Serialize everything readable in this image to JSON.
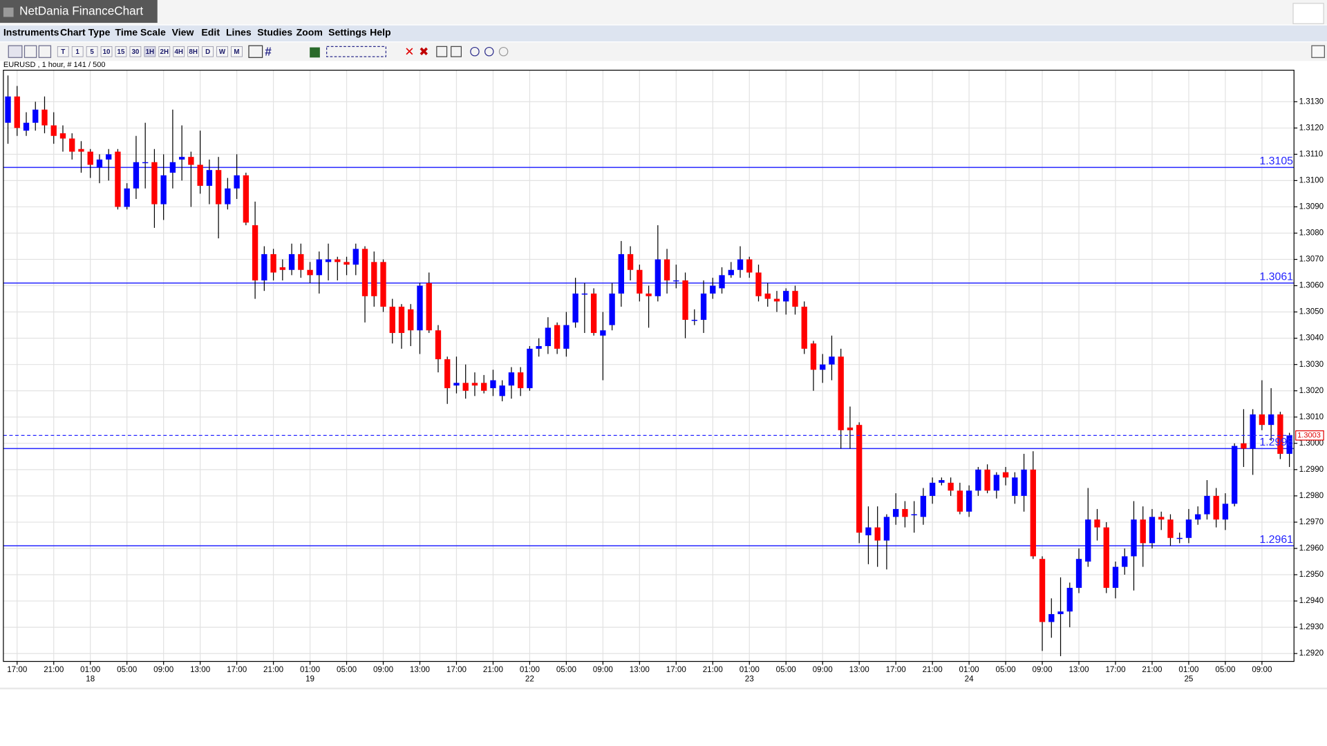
{
  "window": {
    "title": "NetDania FinanceChart"
  },
  "menu": [
    "Instruments",
    "Chart Type",
    "Time Scale",
    "View",
    "Edit",
    "Lines",
    "Studies",
    "Zoom",
    "Settings",
    "Help"
  ],
  "toolbar": [
    "T",
    "1",
    "5",
    "10",
    "15",
    "30",
    "1H",
    "2H",
    "4H",
    "8H",
    "D",
    "W",
    "M"
  ],
  "chart_data": {
    "type": "candlestick",
    "header": "EURUSD , 1 hour, # 141 / 500",
    "up_color": "#0000ff",
    "down_color": "#ff0000",
    "open": [
      1.3122,
      1.3132,
      1.3119,
      1.3122,
      1.3127,
      1.3121,
      1.3118,
      1.3116,
      1.3112,
      1.3111,
      1.3105,
      1.3108,
      1.3111,
      1.309,
      1.3097,
      1.3107,
      1.3107,
      1.3091,
      1.3103,
      1.3108,
      1.3109,
      1.3106,
      1.3098,
      1.3104,
      1.3091,
      1.3097,
      1.3102,
      1.3083,
      1.3062,
      1.3072,
      1.3067,
      1.3066,
      1.3072,
      1.3066,
      1.3064,
      1.3069,
      1.307,
      1.3069,
      1.3068,
      1.3074,
      1.3069,
      1.3069,
      1.3052,
      1.3052,
      1.3051,
      1.3043,
      1.3061,
      1.3043,
      1.3032,
      1.3022,
      1.3023,
      1.3023,
      1.3023,
      1.3021,
      1.3018,
      1.3022,
      1.3027,
      1.3021,
      1.3036,
      1.3037,
      1.3045,
      1.3036,
      1.3046,
      1.3057,
      1.3057,
      1.3041,
      1.3045,
      1.3057,
      1.3072,
      1.3066,
      1.3057,
      1.3056,
      1.307,
      1.3062,
      1.3062,
      1.3047,
      1.3047,
      1.3057,
      1.3059,
      1.3064,
      1.3066,
      1.307,
      1.3065,
      1.3057,
      1.3055,
      1.3054,
      1.3058,
      1.3052,
      1.3038,
      1.3028,
      1.303,
      1.3033,
      1.3006,
      1.3007,
      1.2965,
      1.2968,
      1.2963,
      1.2972,
      1.2975,
      1.2973,
      1.2972,
      1.298,
      1.2985,
      1.2985,
      1.2982,
      1.2974,
      1.2982,
      1.299,
      1.2982,
      1.2989,
      1.298,
      1.298,
      1.299,
      1.2956,
      1.2932,
      1.2935,
      1.2936,
      1.2945,
      1.2955,
      1.2971,
      1.2968,
      1.2945,
      1.2953,
      1.2957,
      1.2971,
      1.2962,
      1.2972,
      1.2971,
      1.2964,
      1.2964,
      1.2971,
      1.2973,
      1.298,
      1.2971,
      1.2977,
      1.3,
      1.2998,
      1.3011,
      1.3007,
      1.3011,
      1.2996
    ],
    "high": [
      1.314,
      1.3136,
      1.3126,
      1.313,
      1.3132,
      1.3126,
      1.3121,
      1.3118,
      1.3115,
      1.3112,
      1.311,
      1.3112,
      1.3112,
      1.3099,
      1.3117,
      1.3122,
      1.3112,
      1.311,
      1.3127,
      1.3121,
      1.3111,
      1.3119,
      1.3108,
      1.3109,
      1.3101,
      1.311,
      1.3103,
      1.3092,
      1.3075,
      1.3074,
      1.307,
      1.3076,
      1.3076,
      1.3069,
      1.3073,
      1.3076,
      1.3071,
      1.3071,
      1.3076,
      1.3075,
      1.3073,
      1.307,
      1.3055,
      1.3053,
      1.3053,
      1.3061,
      1.3065,
      1.3045,
      1.3033,
      1.3033,
      1.303,
      1.3027,
      1.3026,
      1.3028,
      1.3024,
      1.3029,
      1.3029,
      1.3037,
      1.304,
      1.3048,
      1.3046,
      1.305,
      1.3063,
      1.3061,
      1.3059,
      1.305,
      1.3061,
      1.3077,
      1.3075,
      1.3068,
      1.306,
      1.3083,
      1.3074,
      1.3068,
      1.3065,
      1.3051,
      1.3062,
      1.3063,
      1.3067,
      1.3069,
      1.3075,
      1.3071,
      1.3068,
      1.3061,
      1.3058,
      1.3059,
      1.306,
      1.3054,
      1.3039,
      1.3034,
      1.3041,
      1.3036,
      1.3014,
      1.3008,
      1.2976,
      1.2976,
      1.2973,
      1.2981,
      1.2978,
      1.2978,
      1.2983,
      1.2987,
      1.2987,
      1.2987,
      1.2985,
      1.2984,
      1.2991,
      1.2992,
      1.2989,
      1.2991,
      1.2989,
      1.2996,
      1.2997,
      1.2957,
      1.2941,
      1.2949,
      1.2947,
      1.296,
      1.2983,
      1.2975,
      1.297,
      1.2955,
      1.296,
      1.2978,
      1.2976,
      1.2975,
      1.2974,
      1.2973,
      1.2966,
      1.2975,
      1.2976,
      1.2986,
      1.2983,
      1.2981,
      1.3,
      1.3013,
      1.3013,
      1.3024,
      1.3021,
      1.3012,
      1.3004
    ],
    "low": [
      1.3114,
      1.3117,
      1.3117,
      1.3119,
      1.3118,
      1.3114,
      1.3111,
      1.3108,
      1.3103,
      1.3101,
      1.3099,
      1.31,
      1.3089,
      1.3089,
      1.3093,
      1.3097,
      1.3082,
      1.3085,
      1.3097,
      1.31,
      1.309,
      1.3095,
      1.3091,
      1.3078,
      1.3089,
      1.3093,
      1.3083,
      1.3055,
      1.3058,
      1.3062,
      1.3062,
      1.3064,
      1.3063,
      1.3061,
      1.3057,
      1.3062,
      1.3062,
      1.3064,
      1.3064,
      1.3046,
      1.3052,
      1.305,
      1.3038,
      1.3036,
      1.3037,
      1.3034,
      1.3042,
      1.3027,
      1.3015,
      1.3019,
      1.3017,
      1.3018,
      1.3019,
      1.3018,
      1.3016,
      1.3017,
      1.3018,
      1.302,
      1.3033,
      1.3034,
      1.3034,
      1.3033,
      1.3044,
      1.3042,
      1.3041,
      1.3024,
      1.3043,
      1.3052,
      1.3062,
      1.3054,
      1.3044,
      1.3054,
      1.3057,
      1.3059,
      1.304,
      1.3045,
      1.3042,
      1.3055,
      1.3057,
      1.3063,
      1.3063,
      1.3063,
      1.3054,
      1.3052,
      1.305,
      1.3049,
      1.3049,
      1.3034,
      1.302,
      1.3023,
      1.3024,
      1.2998,
      1.2998,
      1.2962,
      1.2954,
      1.2953,
      1.2952,
      1.2969,
      1.2968,
      1.2966,
      1.2969,
      1.2977,
      1.2984,
      1.298,
      1.2973,
      1.2972,
      1.298,
      1.2981,
      1.2979,
      1.2984,
      1.2977,
      1.2974,
      1.2956,
      1.2921,
      1.2926,
      1.2919,
      1.293,
      1.2943,
      1.2953,
      1.2963,
      1.2943,
      1.2941,
      1.295,
      1.2944,
      1.2953,
      1.296,
      1.2967,
      1.2961,
      1.2962,
      1.2962,
      1.2969,
      1.2971,
      1.2968,
      1.2967,
      1.2976,
      1.2991,
      1.2988,
      1.3005,
      1.3001,
      1.2994,
      1.2991
    ],
    "close": [
      1.3132,
      1.312,
      1.3122,
      1.3127,
      1.3121,
      1.3117,
      1.3116,
      1.3111,
      1.3111,
      1.3106,
      1.3108,
      1.311,
      1.309,
      1.3097,
      1.3107,
      1.3107,
      1.3091,
      1.3102,
      1.3107,
      1.3109,
      1.3106,
      1.3098,
      1.3104,
      1.3091,
      1.3097,
      1.3102,
      1.3084,
      1.3062,
      1.3072,
      1.3065,
      1.3066,
      1.3072,
      1.3066,
      1.3064,
      1.307,
      1.307,
      1.3069,
      1.3068,
      1.3074,
      1.3056,
      1.3056,
      1.3052,
      1.3042,
      1.3042,
      1.3043,
      1.306,
      1.3043,
      1.3032,
      1.3021,
      1.3023,
      1.302,
      1.3022,
      1.302,
      1.3024,
      1.3022,
      1.3027,
      1.3021,
      1.3036,
      1.3037,
      1.3044,
      1.3036,
      1.3045,
      1.3057,
      1.3057,
      1.3042,
      1.3043,
      1.3057,
      1.3072,
      1.3066,
      1.3057,
      1.3056,
      1.307,
      1.3062,
      1.3062,
      1.3047,
      1.3047,
      1.3057,
      1.306,
      1.3064,
      1.3066,
      1.307,
      1.3065,
      1.3056,
      1.3055,
      1.3054,
      1.3058,
      1.3052,
      1.3036,
      1.3028,
      1.303,
      1.3033,
      1.3005,
      1.3005,
      1.2966,
      1.2968,
      1.2963,
      1.2972,
      1.2975,
      1.2972,
      1.2973,
      1.298,
      1.2985,
      1.2986,
      1.2982,
      1.2974,
      1.2982,
      1.299,
      1.2982,
      1.2988,
      1.2987,
      1.2987,
      1.299,
      1.2957,
      1.2932,
      1.2935,
      1.2936,
      1.2945,
      1.2956,
      1.2971,
      1.2968,
      1.2945,
      1.2953,
      1.2957,
      1.2971,
      1.2962,
      1.2972,
      1.2971,
      1.2964,
      1.2964,
      1.2971,
      1.2973,
      1.298,
      1.2971,
      1.2977,
      1.2999,
      1.2998,
      1.3011,
      1.3007,
      1.3011,
      1.2996,
      1.3003
    ],
    "ylim": [
      1.2917,
      1.3142
    ],
    "yticks": [
      {
        "value": 1.292,
        "label": "1.2920"
      },
      {
        "value": 1.293,
        "label": "1.2930"
      },
      {
        "value": 1.294,
        "label": "1.2940"
      },
      {
        "value": 1.295,
        "label": "1.2950"
      },
      {
        "value": 1.296,
        "label": "1.2960"
      },
      {
        "value": 1.297,
        "label": "1.2970"
      },
      {
        "value": 1.298,
        "label": "1.2980"
      },
      {
        "value": 1.299,
        "label": "1.2990"
      },
      {
        "value": 1.3,
        "label": "1.3000"
      },
      {
        "value": 1.301,
        "label": "1.3010"
      },
      {
        "value": 1.302,
        "label": "1.3020"
      },
      {
        "value": 1.303,
        "label": "1.3030"
      },
      {
        "value": 1.304,
        "label": "1.3040"
      },
      {
        "value": 1.305,
        "label": "1.3050"
      },
      {
        "value": 1.306,
        "label": "1.3060"
      },
      {
        "value": 1.307,
        "label": "1.3070"
      },
      {
        "value": 1.308,
        "label": "1.3080"
      },
      {
        "value": 1.309,
        "label": "1.3090"
      },
      {
        "value": 1.31,
        "label": "1.3100"
      },
      {
        "value": 1.311,
        "label": "1.3110"
      },
      {
        "value": 1.312,
        "label": "1.3120"
      },
      {
        "value": 1.313,
        "label": "1.3130"
      }
    ],
    "xticks": [
      {
        "value": 1,
        "label": "17:00"
      },
      {
        "value": 5,
        "label": "21:00"
      },
      {
        "value": 9,
        "label": "01:00"
      },
      {
        "value": 13,
        "label": "05:00"
      },
      {
        "value": 17,
        "label": "09:00"
      },
      {
        "value": 21,
        "label": "13:00"
      },
      {
        "value": 25,
        "label": "17:00"
      },
      {
        "value": 29,
        "label": "21:00"
      },
      {
        "value": 33,
        "label": "01:00"
      },
      {
        "value": 37,
        "label": "05:00"
      },
      {
        "value": 41,
        "label": "09:00"
      },
      {
        "value": 45,
        "label": "13:00"
      },
      {
        "value": 49,
        "label": "17:00"
      },
      {
        "value": 53,
        "label": "21:00"
      },
      {
        "value": 57,
        "label": "01:00"
      },
      {
        "value": 61,
        "label": "05:00"
      },
      {
        "value": 65,
        "label": "09:00"
      },
      {
        "value": 69,
        "label": "13:00"
      },
      {
        "value": 73,
        "label": "17:00"
      },
      {
        "value": 77,
        "label": "21:00"
      },
      {
        "value": 81,
        "label": "01:00"
      },
      {
        "value": 85,
        "label": "05:00"
      },
      {
        "value": 89,
        "label": "09:00"
      },
      {
        "value": 93,
        "label": "13:00"
      },
      {
        "value": 97,
        "label": "17:00"
      },
      {
        "value": 101,
        "label": "21:00"
      },
      {
        "value": 105,
        "label": "01:00"
      },
      {
        "value": 109,
        "label": "05:00"
      },
      {
        "value": 113,
        "label": "09:00"
      },
      {
        "value": 117,
        "label": "13:00"
      },
      {
        "value": 121,
        "label": "17:00"
      },
      {
        "value": 125,
        "label": "21:00"
      },
      {
        "value": 129,
        "label": "01:00"
      },
      {
        "value": 133,
        "label": "05:00"
      },
      {
        "value": 137,
        "label": "09:00"
      }
    ],
    "day_labels": [
      {
        "value": 9,
        "label": "18"
      },
      {
        "value": 33,
        "label": "19"
      },
      {
        "value": 57,
        "label": "22"
      },
      {
        "value": 81,
        "label": "23"
      },
      {
        "value": 105,
        "label": "24"
      },
      {
        "value": 129,
        "label": "25"
      }
    ],
    "grid": true,
    "levels": [
      1.3105,
      1.3061,
      1.2998,
      1.2961
    ],
    "level_color": "#2424ff",
    "last_price": 1.3003
  }
}
